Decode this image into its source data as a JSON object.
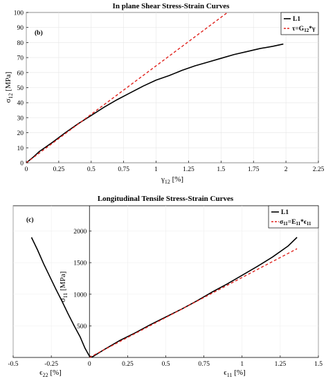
{
  "chart_data": [
    {
      "panel": "(b)",
      "type": "line",
      "title": "In plane Shear Stress-Strain Curves",
      "xlabel_main": "γ",
      "xlabel_sub": "12",
      "xlabel_unit": " [%]",
      "ylabel_main": "σ",
      "ylabel_sub": "12",
      "ylabel_unit": " [MPa]",
      "xlim": [
        0,
        2.25
      ],
      "ylim": [
        0,
        100
      ],
      "xticks": [
        0,
        0.25,
        0.5,
        0.75,
        1,
        1.25,
        1.5,
        1.75,
        2,
        2.25
      ],
      "xtick_labels": [
        "0",
        "0.25",
        "0.5",
        "0.75",
        "1",
        "1.25",
        "1.5",
        "1.75",
        "2",
        "2.25"
      ],
      "yticks": [
        0,
        10,
        20,
        30,
        40,
        50,
        60,
        70,
        80,
        90,
        100
      ],
      "ytick_labels": [
        "0",
        "10",
        "20",
        "30",
        "40",
        "50",
        "60",
        "70",
        "80",
        "90",
        "100"
      ],
      "legend_position": "top-right",
      "series": [
        {
          "name": "L1",
          "style": "solid",
          "color": "#000000",
          "x": [
            0,
            0.05,
            0.1,
            0.2,
            0.3,
            0.4,
            0.5,
            0.6,
            0.7,
            0.8,
            0.9,
            1.0,
            1.1,
            1.2,
            1.3,
            1.4,
            1.5,
            1.6,
            1.7,
            1.8,
            1.9,
            1.98
          ],
          "y": [
            0,
            3.5,
            7.5,
            13.5,
            20,
            26,
            31.5,
            37,
            42,
            46.5,
            51,
            55,
            58,
            61.5,
            64.5,
            67,
            69.5,
            72,
            74,
            76,
            77.5,
            79
          ]
        },
        {
          "name_prefix": "τ=G",
          "name_sub": "12",
          "name_suffix": "*γ",
          "style": "dashed",
          "color": "#e0201b",
          "x": [
            0,
            1.55
          ],
          "y": [
            0,
            100
          ]
        }
      ]
    },
    {
      "panel": "(c)",
      "type": "line",
      "title": "Longitudinal Tensile Stress-Strain Curves",
      "xlabel_main": "ϵ",
      "xlabel_sub": "11",
      "xlabel_unit": " [%]",
      "xlabel2_main": "ϵ",
      "xlabel2_sub": "22",
      "xlabel2_unit": " [%]",
      "ylabel_main": "σ",
      "ylabel_sub": "11",
      "ylabel_unit": " [MPa]",
      "xlim": [
        -0.5,
        1.5
      ],
      "ylim": [
        0,
        2400
      ],
      "xticks": [
        -0.5,
        -0.25,
        0,
        0.25,
        0.5,
        0.75,
        1,
        1.25,
        1.5
      ],
      "xtick_labels": [
        "-0.5",
        "-0.25",
        "0",
        "0.25",
        "0.5",
        "0.75",
        "1",
        "1.25",
        "1.5"
      ],
      "yticks": [
        500,
        1000,
        1500,
        2000
      ],
      "ytick_labels": [
        "500",
        "1000",
        "1500",
        "2000"
      ],
      "legend_position": "top-right",
      "series": [
        {
          "name": "L1",
          "style": "solid",
          "color": "#000000",
          "x": [
            -0.38,
            -0.34,
            -0.3,
            -0.26,
            -0.22,
            -0.18,
            -0.14,
            -0.1,
            -0.06,
            -0.03,
            0,
            0.02,
            0.1,
            0.2,
            0.3,
            0.4,
            0.5,
            0.6,
            0.7,
            0.8,
            0.9,
            1.0,
            1.1,
            1.2,
            1.3,
            1.36
          ],
          "y": [
            1900,
            1700,
            1480,
            1280,
            1080,
            890,
            690,
            500,
            320,
            150,
            20,
            10,
            130,
            270,
            390,
            520,
            640,
            760,
            890,
            1030,
            1160,
            1300,
            1440,
            1590,
            1760,
            1900
          ]
        },
        {
          "name_prefix": "σ",
          "name_sub": "11",
          "name_mid": "=E",
          "name_sub2": "11",
          "name_mid2": "*ϵ",
          "name_sub3": "11",
          "style": "dashed",
          "color": "#e0201b",
          "x": [
            0,
            1.36
          ],
          "y": [
            0,
            1720
          ]
        }
      ]
    }
  ]
}
